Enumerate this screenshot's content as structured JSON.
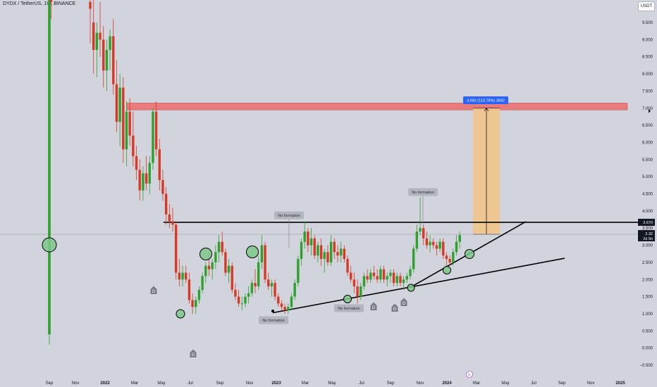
{
  "header": {
    "symbol_title": "DYDX / TetherUS, 1W, BINANCE",
    "currency": "USDT"
  },
  "colors": {
    "background": "#d1d4dc",
    "up": "#2ea02e",
    "down": "#d63a27",
    "resistance_zone": "#ec6b6b",
    "target_zone": "#f0c48a",
    "trendline": "#000000",
    "circle_fill": "#7fc78a",
    "measure_label": "#2962ff",
    "last_price_label": "#131722"
  },
  "icons": {
    "dividend_marker": "D",
    "earnings_marker": "E"
  },
  "chart_data": {
    "type": "candlestick",
    "title": "DYDX / TetherUS, 1W, BINANCE",
    "xlabel": "",
    "ylabel": "",
    "ylim": [
      -0.5,
      10.0
    ],
    "grid": false,
    "price_axis": {
      "ticks": [
        "−0.500",
        "0.000",
        "0.500",
        "1.000",
        "1.500",
        "2.000",
        "2.500",
        "3.000",
        "3.500",
        "4.000",
        "4.500",
        "5.000",
        "5.500",
        "6.000",
        "6.500",
        "7.000",
        "7.500",
        "8.000",
        "8.500",
        "9.000",
        "9.500"
      ],
      "tick_values": [
        -0.5,
        0.0,
        0.5,
        1.0,
        1.5,
        2.0,
        2.5,
        3.0,
        3.5,
        4.0,
        4.5,
        5.0,
        5.5,
        6.0,
        6.5,
        7.0,
        7.5,
        8.0,
        8.5,
        9.0,
        9.5
      ]
    },
    "time_axis": {
      "labels": [
        "Sep",
        "Nov",
        "2022",
        "Mar",
        "May",
        "Jul",
        "Sep",
        "Nov",
        "2023",
        "Mar",
        "May",
        "Jul",
        "Sep",
        "Nov",
        "2024",
        "Mar",
        "May",
        "Jul",
        "Sep",
        "Nov",
        "2025"
      ],
      "bold_labels": [
        "2022",
        "2023",
        "2024",
        "2025"
      ]
    },
    "candles_ohlc": [
      [
        0.4,
        3.1,
        0.1,
        2.9
      ],
      [
        2.9,
        27.0,
        2.9,
        10.5
      ],
      [
        10.5,
        11.8,
        9.6,
        10.1
      ],
      [
        10.1,
        10.9,
        8.9,
        9.9
      ],
      [
        9.5,
        11.0,
        8.0,
        8.7
      ],
      [
        8.7,
        9.5,
        7.9,
        9.2
      ],
      [
        9.2,
        10.1,
        8.5,
        9.0
      ],
      [
        9.0,
        9.4,
        7.6,
        8.1
      ],
      [
        8.1,
        9.0,
        7.5,
        8.7
      ],
      [
        8.7,
        9.3,
        8.1,
        9.1
      ],
      [
        9.1,
        9.6,
        7.4,
        7.7
      ],
      [
        7.7,
        8.4,
        6.3,
        6.6
      ],
      [
        6.6,
        8.0,
        5.9,
        7.6
      ],
      [
        7.6,
        7.9,
        5.4,
        5.8
      ],
      [
        5.8,
        7.2,
        5.3,
        6.9
      ],
      [
        6.9,
        7.3,
        5.9,
        6.2
      ],
      [
        6.2,
        6.9,
        5.3,
        5.6
      ],
      [
        5.6,
        5.9,
        4.9,
        5.2
      ],
      [
        5.2,
        5.5,
        4.3,
        4.6
      ],
      [
        4.6,
        5.3,
        4.3,
        5.1
      ],
      [
        5.1,
        5.6,
        4.6,
        4.8
      ],
      [
        4.8,
        5.6,
        4.5,
        5.4
      ],
      [
        5.4,
        7.0,
        5.2,
        6.9
      ],
      [
        6.9,
        7.2,
        5.6,
        5.8
      ],
      [
        5.8,
        6.1,
        4.6,
        4.9
      ],
      [
        4.9,
        5.2,
        4.3,
        4.5
      ],
      [
        4.5,
        4.7,
        3.6,
        3.9
      ],
      [
        3.9,
        4.2,
        3.5,
        3.7
      ],
      [
        3.7,
        4.1,
        3.4,
        3.6
      ],
      [
        3.6,
        3.7,
        2.0,
        2.2
      ],
      [
        2.2,
        2.6,
        1.8,
        2.0
      ],
      [
        2.0,
        2.4,
        1.8,
        2.2
      ],
      [
        2.2,
        2.4,
        1.9,
        2.0
      ],
      [
        2.0,
        2.2,
        1.3,
        1.4
      ],
      [
        1.4,
        1.6,
        1.0,
        1.2
      ],
      [
        1.2,
        1.5,
        1.0,
        1.4
      ],
      [
        1.4,
        1.8,
        1.3,
        1.7
      ],
      [
        1.7,
        2.2,
        1.6,
        2.1
      ],
      [
        2.1,
        2.5,
        1.9,
        2.4
      ],
      [
        2.4,
        2.8,
        2.1,
        2.3
      ],
      [
        2.3,
        2.6,
        2.0,
        2.5
      ],
      [
        2.5,
        3.0,
        2.3,
        2.8
      ],
      [
        2.8,
        3.3,
        2.5,
        3.1
      ],
      [
        3.1,
        3.4,
        2.7,
        2.8
      ],
      [
        2.8,
        2.9,
        2.1,
        2.2
      ],
      [
        2.2,
        2.6,
        1.9,
        2.4
      ],
      [
        2.4,
        2.5,
        1.6,
        1.7
      ],
      [
        1.7,
        1.9,
        1.4,
        1.5
      ],
      [
        1.5,
        1.7,
        1.2,
        1.3
      ],
      [
        1.3,
        1.5,
        1.1,
        1.3
      ],
      [
        1.3,
        1.6,
        1.2,
        1.5
      ],
      [
        1.5,
        1.8,
        1.3,
        1.6
      ],
      [
        1.6,
        2.0,
        1.5,
        1.9
      ],
      [
        1.9,
        2.3,
        1.6,
        1.8
      ],
      [
        1.8,
        2.7,
        1.7,
        2.5
      ],
      [
        2.5,
        3.3,
        2.3,
        3.0
      ],
      [
        3.0,
        3.1,
        1.9,
        2.0
      ],
      [
        2.0,
        2.2,
        1.7,
        1.8
      ],
      [
        1.8,
        2.0,
        1.5,
        1.9
      ],
      [
        1.9,
        2.0,
        1.4,
        1.5
      ],
      [
        1.5,
        1.6,
        1.2,
        1.3
      ],
      [
        1.3,
        1.4,
        1.1,
        1.2
      ],
      [
        1.2,
        1.3,
        1.0,
        1.1
      ],
      [
        1.1,
        1.3,
        1.0,
        1.2
      ],
      [
        1.2,
        1.6,
        1.1,
        1.5
      ],
      [
        1.5,
        2.0,
        1.4,
        1.9
      ],
      [
        1.9,
        2.7,
        1.8,
        2.6
      ],
      [
        2.6,
        3.2,
        2.4,
        3.1
      ],
      [
        3.1,
        3.7,
        2.9,
        3.4
      ],
      [
        3.4,
        3.5,
        2.8,
        3.0
      ],
      [
        3.0,
        3.5,
        2.7,
        3.2
      ],
      [
        3.2,
        3.3,
        2.6,
        2.7
      ],
      [
        2.7,
        3.1,
        2.5,
        3.0
      ],
      [
        3.0,
        3.2,
        2.4,
        2.6
      ],
      [
        2.6,
        2.9,
        2.2,
        2.8
      ],
      [
        2.8,
        3.0,
        2.4,
        2.5
      ],
      [
        2.5,
        3.3,
        2.4,
        3.1
      ],
      [
        3.1,
        3.2,
        2.6,
        2.8
      ],
      [
        2.8,
        3.0,
        2.5,
        2.7
      ],
      [
        2.7,
        3.1,
        2.5,
        2.9
      ],
      [
        2.9,
        3.0,
        2.5,
        2.6
      ],
      [
        2.6,
        2.7,
        2.1,
        2.2
      ],
      [
        2.2,
        2.4,
        1.9,
        2.0
      ],
      [
        2.0,
        2.2,
        1.6,
        1.8
      ],
      [
        1.8,
        2.0,
        1.3,
        1.5
      ],
      [
        1.5,
        1.9,
        1.4,
        1.8
      ],
      [
        1.8,
        2.2,
        1.7,
        2.1
      ],
      [
        2.1,
        2.3,
        1.9,
        2.0
      ],
      [
        2.0,
        2.3,
        1.9,
        2.2
      ],
      [
        2.2,
        2.4,
        2.0,
        2.1
      ],
      [
        2.1,
        2.3,
        1.9,
        2.0
      ],
      [
        2.0,
        2.4,
        1.9,
        2.3
      ],
      [
        2.3,
        2.4,
        1.9,
        2.0
      ],
      [
        2.0,
        2.2,
        1.8,
        2.1
      ],
      [
        2.1,
        2.3,
        1.9,
        2.2
      ],
      [
        2.2,
        2.3,
        1.8,
        1.9
      ],
      [
        1.9,
        2.2,
        1.8,
        2.1
      ],
      [
        2.1,
        2.2,
        1.8,
        1.9
      ],
      [
        1.9,
        2.1,
        1.7,
        2.0
      ],
      [
        2.0,
        2.2,
        1.9,
        2.1
      ],
      [
        2.1,
        2.4,
        2.0,
        2.3
      ],
      [
        2.3,
        3.0,
        2.2,
        2.9
      ],
      [
        2.9,
        3.6,
        2.8,
        3.4
      ],
      [
        3.4,
        4.4,
        3.3,
        3.5
      ],
      [
        3.5,
        3.6,
        3.0,
        3.2
      ],
      [
        3.2,
        3.4,
        2.9,
        3.0
      ],
      [
        3.0,
        3.3,
        2.8,
        3.1
      ],
      [
        3.1,
        3.2,
        2.9,
        3.0
      ],
      [
        3.0,
        3.1,
        2.7,
        2.9
      ],
      [
        2.9,
        3.2,
        2.8,
        3.1
      ],
      [
        3.1,
        3.2,
        2.6,
        2.7
      ],
      [
        2.7,
        2.8,
        2.4,
        2.6
      ],
      [
        2.6,
        2.7,
        2.4,
        2.5
      ],
      [
        2.5,
        2.9,
        2.4,
        2.8
      ],
      [
        2.8,
        3.3,
        2.7,
        3.1
      ],
      [
        3.1,
        3.4,
        2.9,
        3.3
      ]
    ],
    "resistance_zone": [
      6.95,
      7.15
    ],
    "horizontal_line": 3.67,
    "last_price": "3.32",
    "last_price_countdown": "2d 5h",
    "level_label": "3.670",
    "measure_label": "3.692 (110.76%) 3692",
    "annotations": [
      {
        "text": "No formation"
      },
      {
        "text": "No formation"
      },
      {
        "text": "No formation"
      },
      {
        "text": "No formation"
      }
    ]
  }
}
